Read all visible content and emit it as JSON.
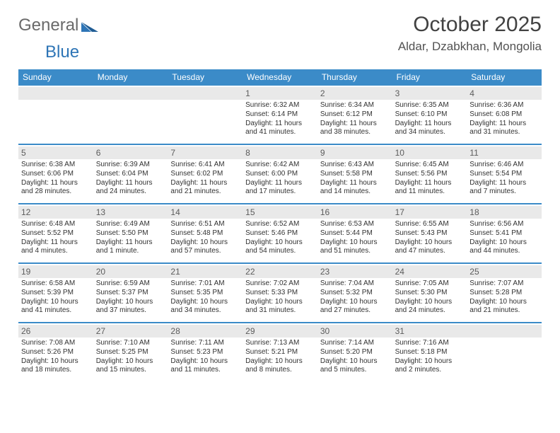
{
  "brand": {
    "part1": "General",
    "part2": "Blue"
  },
  "title": "October 2025",
  "location": "Aldar, Dzabkhan, Mongolia",
  "colors": {
    "header_bg": "#3b8bc8",
    "header_text": "#ffffff",
    "daynum_bg": "#e9e9e9",
    "daynum_text": "#5c5c5c",
    "body_text": "#323232",
    "divider": "#3b8bc8",
    "brand_gray": "#6a6a6a",
    "brand_blue": "#2e75b6"
  },
  "dow": [
    "Sunday",
    "Monday",
    "Tuesday",
    "Wednesday",
    "Thursday",
    "Friday",
    "Saturday"
  ],
  "weeks": [
    [
      {
        "n": "",
        "sr": "",
        "ss": "",
        "dl": ""
      },
      {
        "n": "",
        "sr": "",
        "ss": "",
        "dl": ""
      },
      {
        "n": "",
        "sr": "",
        "ss": "",
        "dl": ""
      },
      {
        "n": "1",
        "sr": "Sunrise: 6:32 AM",
        "ss": "Sunset: 6:14 PM",
        "dl": "Daylight: 11 hours and 41 minutes."
      },
      {
        "n": "2",
        "sr": "Sunrise: 6:34 AM",
        "ss": "Sunset: 6:12 PM",
        "dl": "Daylight: 11 hours and 38 minutes."
      },
      {
        "n": "3",
        "sr": "Sunrise: 6:35 AM",
        "ss": "Sunset: 6:10 PM",
        "dl": "Daylight: 11 hours and 34 minutes."
      },
      {
        "n": "4",
        "sr": "Sunrise: 6:36 AM",
        "ss": "Sunset: 6:08 PM",
        "dl": "Daylight: 11 hours and 31 minutes."
      }
    ],
    [
      {
        "n": "5",
        "sr": "Sunrise: 6:38 AM",
        "ss": "Sunset: 6:06 PM",
        "dl": "Daylight: 11 hours and 28 minutes."
      },
      {
        "n": "6",
        "sr": "Sunrise: 6:39 AM",
        "ss": "Sunset: 6:04 PM",
        "dl": "Daylight: 11 hours and 24 minutes."
      },
      {
        "n": "7",
        "sr": "Sunrise: 6:41 AM",
        "ss": "Sunset: 6:02 PM",
        "dl": "Daylight: 11 hours and 21 minutes."
      },
      {
        "n": "8",
        "sr": "Sunrise: 6:42 AM",
        "ss": "Sunset: 6:00 PM",
        "dl": "Daylight: 11 hours and 17 minutes."
      },
      {
        "n": "9",
        "sr": "Sunrise: 6:43 AM",
        "ss": "Sunset: 5:58 PM",
        "dl": "Daylight: 11 hours and 14 minutes."
      },
      {
        "n": "10",
        "sr": "Sunrise: 6:45 AM",
        "ss": "Sunset: 5:56 PM",
        "dl": "Daylight: 11 hours and 11 minutes."
      },
      {
        "n": "11",
        "sr": "Sunrise: 6:46 AM",
        "ss": "Sunset: 5:54 PM",
        "dl": "Daylight: 11 hours and 7 minutes."
      }
    ],
    [
      {
        "n": "12",
        "sr": "Sunrise: 6:48 AM",
        "ss": "Sunset: 5:52 PM",
        "dl": "Daylight: 11 hours and 4 minutes."
      },
      {
        "n": "13",
        "sr": "Sunrise: 6:49 AM",
        "ss": "Sunset: 5:50 PM",
        "dl": "Daylight: 11 hours and 1 minute."
      },
      {
        "n": "14",
        "sr": "Sunrise: 6:51 AM",
        "ss": "Sunset: 5:48 PM",
        "dl": "Daylight: 10 hours and 57 minutes."
      },
      {
        "n": "15",
        "sr": "Sunrise: 6:52 AM",
        "ss": "Sunset: 5:46 PM",
        "dl": "Daylight: 10 hours and 54 minutes."
      },
      {
        "n": "16",
        "sr": "Sunrise: 6:53 AM",
        "ss": "Sunset: 5:44 PM",
        "dl": "Daylight: 10 hours and 51 minutes."
      },
      {
        "n": "17",
        "sr": "Sunrise: 6:55 AM",
        "ss": "Sunset: 5:43 PM",
        "dl": "Daylight: 10 hours and 47 minutes."
      },
      {
        "n": "18",
        "sr": "Sunrise: 6:56 AM",
        "ss": "Sunset: 5:41 PM",
        "dl": "Daylight: 10 hours and 44 minutes."
      }
    ],
    [
      {
        "n": "19",
        "sr": "Sunrise: 6:58 AM",
        "ss": "Sunset: 5:39 PM",
        "dl": "Daylight: 10 hours and 41 minutes."
      },
      {
        "n": "20",
        "sr": "Sunrise: 6:59 AM",
        "ss": "Sunset: 5:37 PM",
        "dl": "Daylight: 10 hours and 37 minutes."
      },
      {
        "n": "21",
        "sr": "Sunrise: 7:01 AM",
        "ss": "Sunset: 5:35 PM",
        "dl": "Daylight: 10 hours and 34 minutes."
      },
      {
        "n": "22",
        "sr": "Sunrise: 7:02 AM",
        "ss": "Sunset: 5:33 PM",
        "dl": "Daylight: 10 hours and 31 minutes."
      },
      {
        "n": "23",
        "sr": "Sunrise: 7:04 AM",
        "ss": "Sunset: 5:32 PM",
        "dl": "Daylight: 10 hours and 27 minutes."
      },
      {
        "n": "24",
        "sr": "Sunrise: 7:05 AM",
        "ss": "Sunset: 5:30 PM",
        "dl": "Daylight: 10 hours and 24 minutes."
      },
      {
        "n": "25",
        "sr": "Sunrise: 7:07 AM",
        "ss": "Sunset: 5:28 PM",
        "dl": "Daylight: 10 hours and 21 minutes."
      }
    ],
    [
      {
        "n": "26",
        "sr": "Sunrise: 7:08 AM",
        "ss": "Sunset: 5:26 PM",
        "dl": "Daylight: 10 hours and 18 minutes."
      },
      {
        "n": "27",
        "sr": "Sunrise: 7:10 AM",
        "ss": "Sunset: 5:25 PM",
        "dl": "Daylight: 10 hours and 15 minutes."
      },
      {
        "n": "28",
        "sr": "Sunrise: 7:11 AM",
        "ss": "Sunset: 5:23 PM",
        "dl": "Daylight: 10 hours and 11 minutes."
      },
      {
        "n": "29",
        "sr": "Sunrise: 7:13 AM",
        "ss": "Sunset: 5:21 PM",
        "dl": "Daylight: 10 hours and 8 minutes."
      },
      {
        "n": "30",
        "sr": "Sunrise: 7:14 AM",
        "ss": "Sunset: 5:20 PM",
        "dl": "Daylight: 10 hours and 5 minutes."
      },
      {
        "n": "31",
        "sr": "Sunrise: 7:16 AM",
        "ss": "Sunset: 5:18 PM",
        "dl": "Daylight: 10 hours and 2 minutes."
      },
      {
        "n": "",
        "sr": "",
        "ss": "",
        "dl": ""
      }
    ]
  ]
}
